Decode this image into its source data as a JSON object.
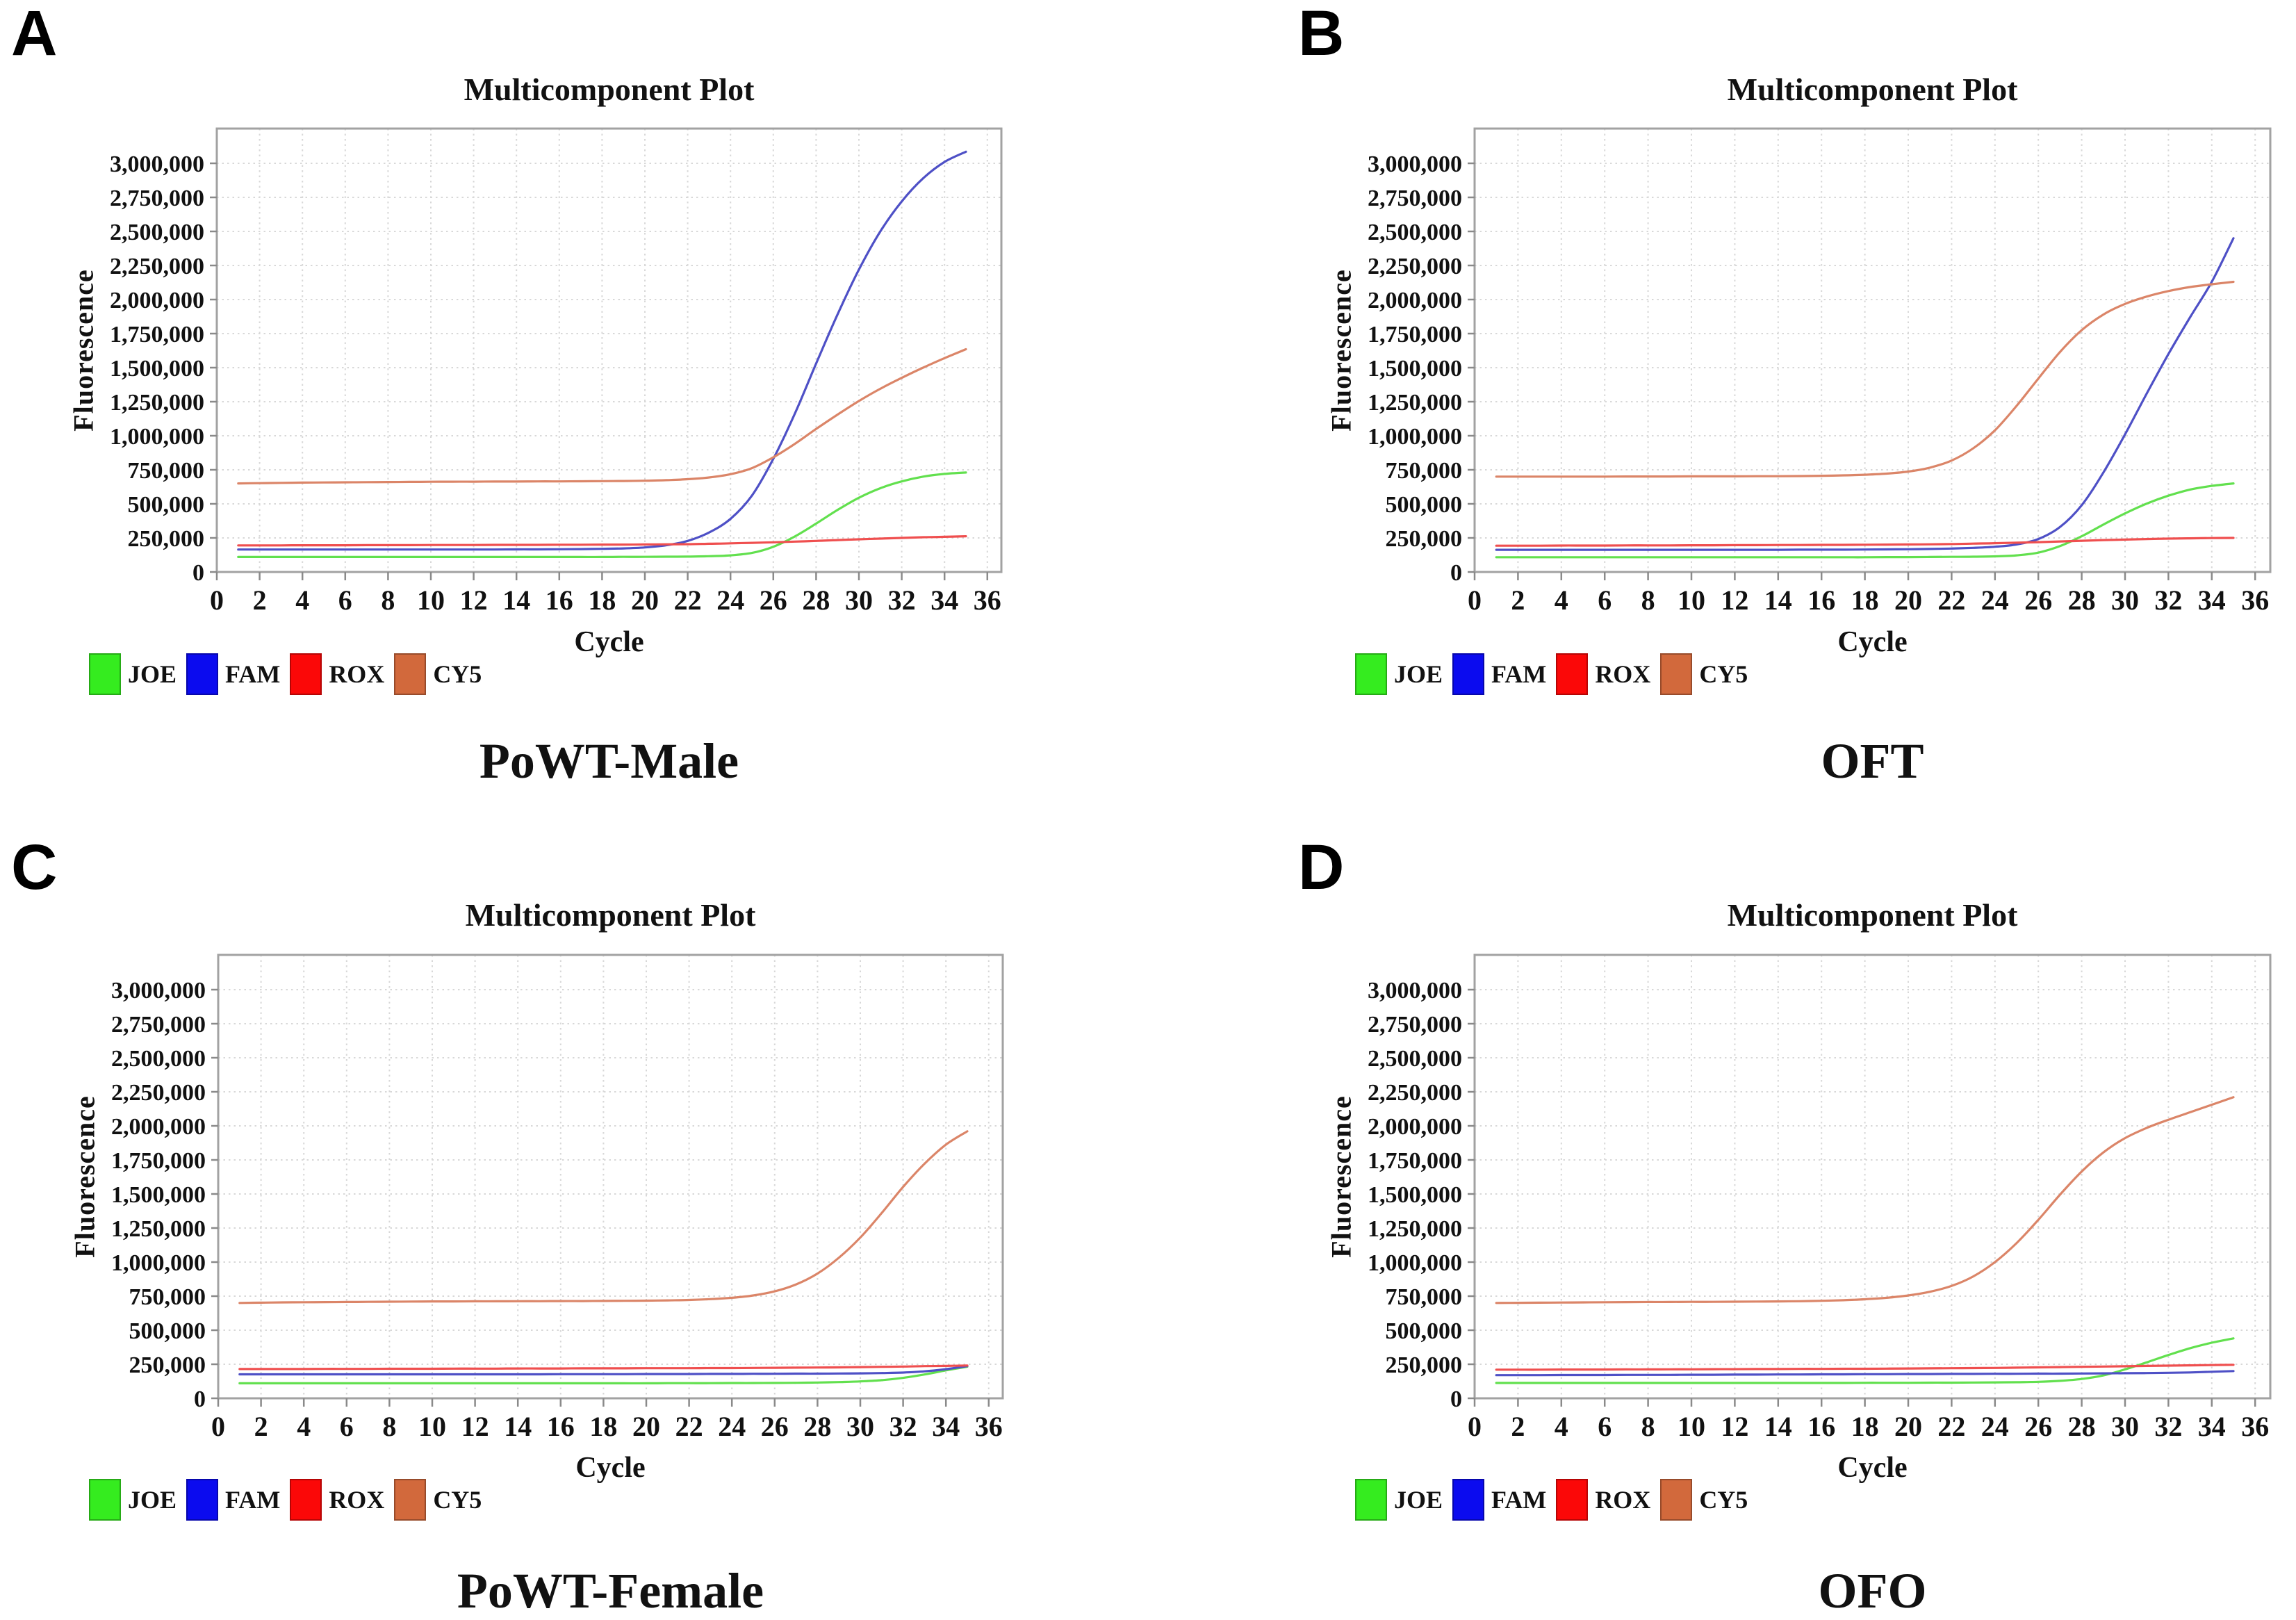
{
  "figure": {
    "background": "#ffffff",
    "frame_color": "#a2a2a2",
    "grid_color": "#d8d8d8",
    "tick_color": "#8a8a8a",
    "text_color": "#111111"
  },
  "axes": {
    "x_ticks": [
      0,
      2,
      4,
      6,
      8,
      10,
      12,
      14,
      16,
      18,
      20,
      22,
      24,
      26,
      28,
      30,
      32,
      34,
      36
    ],
    "y_ticks": [
      0,
      250000,
      500000,
      750000,
      1000000,
      1250000,
      1500000,
      1750000,
      2000000,
      2250000,
      2500000,
      2750000,
      3000000
    ],
    "xlim": [
      0,
      36.7
    ],
    "ylim": [
      0,
      3255000
    ],
    "grid": "dotted",
    "legend_position": "below-left"
  },
  "chart_data": [
    {
      "type": "line",
      "panel_letter": "A",
      "caption": "PoWT-Male",
      "title": "Multicomponent Plot",
      "xlabel": "Cycle",
      "ylabel": "Fluorescence",
      "cycles": {
        "start": 1,
        "end": 35,
        "step": 1
      },
      "series": [
        {
          "name": "JOE",
          "color": "#62e04e",
          "legend_color": "#35ec1f",
          "values": [
            110000,
            110000,
            110000,
            110000,
            110000,
            110000,
            110000,
            110000,
            110000,
            110000,
            110000,
            110000,
            110000,
            110000,
            110000,
            110000,
            110000,
            110000,
            111000,
            111000,
            112000,
            113000,
            116000,
            122000,
            140000,
            185000,
            260000,
            355000,
            455000,
            545000,
            615000,
            665000,
            700000,
            720000,
            730000
          ]
        },
        {
          "name": "FAM",
          "color": "#4e50c6",
          "legend_color": "#0b0bef",
          "values": [
            165000,
            165000,
            165000,
            165000,
            165000,
            165000,
            165000,
            165000,
            165000,
            165000,
            165000,
            165000,
            165000,
            166000,
            166000,
            167000,
            168000,
            170000,
            173000,
            180000,
            196000,
            228000,
            290000,
            390000,
            560000,
            830000,
            1160000,
            1530000,
            1890000,
            2220000,
            2500000,
            2720000,
            2890000,
            3010000,
            3085000
          ]
        },
        {
          "name": "ROX",
          "color": "#ef4f4f",
          "legend_color": "#fb0808",
          "values": [
            195000,
            195000,
            195000,
            196000,
            196000,
            196000,
            197000,
            197000,
            197000,
            198000,
            198000,
            198000,
            199000,
            199000,
            199000,
            200000,
            200000,
            201000,
            201000,
            202000,
            203000,
            204000,
            207000,
            210000,
            214000,
            218000,
            223000,
            228000,
            234000,
            240000,
            245000,
            250000,
            255000,
            258000,
            262000
          ]
        },
        {
          "name": "CY5",
          "color": "#db8568",
          "legend_color": "#d2693c",
          "values": [
            650000,
            652000,
            654000,
            656000,
            657000,
            658000,
            659000,
            660000,
            661000,
            662000,
            663000,
            663000,
            664000,
            664000,
            665000,
            665000,
            666000,
            667000,
            668000,
            670000,
            674000,
            681000,
            694000,
            718000,
            762000,
            842000,
            940000,
            1050000,
            1155000,
            1255000,
            1345000,
            1425000,
            1500000,
            1570000,
            1635000
          ]
        }
      ]
    },
    {
      "type": "line",
      "panel_letter": "B",
      "caption": "OFT",
      "title": "Multicomponent Plot",
      "xlabel": "Cycle",
      "ylabel": "Fluorescence",
      "cycles": {
        "start": 1,
        "end": 35,
        "step": 1
      },
      "series": [
        {
          "name": "JOE",
          "color": "#62e04e",
          "legend_color": "#35ec1f",
          "values": [
            108000,
            108000,
            108000,
            108000,
            108000,
            108000,
            108000,
            108000,
            108000,
            108000,
            108000,
            108000,
            108000,
            108000,
            108000,
            108000,
            108000,
            108000,
            109000,
            109000,
            110000,
            111000,
            112000,
            115000,
            122000,
            142000,
            190000,
            262000,
            348000,
            430000,
            502000,
            560000,
            605000,
            632000,
            650000
          ]
        },
        {
          "name": "FAM",
          "color": "#4e50c6",
          "legend_color": "#0b0bef",
          "values": [
            163000,
            163000,
            163000,
            163000,
            163000,
            163000,
            163000,
            163000,
            163000,
            163000,
            163000,
            163000,
            163000,
            163000,
            164000,
            164000,
            164000,
            165000,
            166000,
            167000,
            169000,
            172000,
            177000,
            185000,
            202000,
            242000,
            330000,
            490000,
            730000,
            1010000,
            1310000,
            1600000,
            1870000,
            2130000,
            2450000
          ]
        },
        {
          "name": "ROX",
          "color": "#ef4f4f",
          "legend_color": "#fb0808",
          "values": [
            193000,
            193000,
            193000,
            194000,
            194000,
            194000,
            195000,
            195000,
            195000,
            196000,
            196000,
            197000,
            197000,
            198000,
            198000,
            199000,
            199000,
            200000,
            201000,
            202000,
            203000,
            205000,
            208000,
            211000,
            215000,
            219000,
            224000,
            229000,
            234000,
            238000,
            242000,
            245000,
            247000,
            249000,
            250000
          ]
        },
        {
          "name": "CY5",
          "color": "#db8568",
          "legend_color": "#d2693c",
          "values": [
            700000,
            700000,
            700000,
            700000,
            700000,
            700000,
            701000,
            701000,
            701000,
            702000,
            702000,
            702000,
            703000,
            703000,
            704000,
            706000,
            709000,
            714000,
            722000,
            737000,
            766000,
            818000,
            908000,
            1040000,
            1220000,
            1420000,
            1615000,
            1775000,
            1890000,
            1968000,
            2022000,
            2062000,
            2092000,
            2112000,
            2130000
          ]
        }
      ]
    },
    {
      "type": "line",
      "panel_letter": "C",
      "caption": "PoWT-Female",
      "title": "Multicomponent Plot",
      "xlabel": "Cycle",
      "ylabel": "Fluorescence",
      "cycles": {
        "start": 1,
        "end": 35,
        "step": 1
      },
      "series": [
        {
          "name": "JOE",
          "color": "#62e04e",
          "legend_color": "#35ec1f",
          "values": [
            110000,
            110000,
            110000,
            110000,
            110000,
            110000,
            110000,
            110000,
            110000,
            110000,
            110000,
            110000,
            110000,
            110000,
            110000,
            110000,
            110000,
            110000,
            110000,
            110000,
            111000,
            111000,
            111000,
            112000,
            112000,
            113000,
            114000,
            116000,
            119000,
            124000,
            133000,
            150000,
            175000,
            205000,
            232000
          ]
        },
        {
          "name": "FAM",
          "color": "#4e50c6",
          "legend_color": "#0b0bef",
          "values": [
            176000,
            176000,
            176000,
            176000,
            176000,
            176000,
            176000,
            176000,
            176000,
            176000,
            176000,
            176000,
            176000,
            176000,
            176000,
            177000,
            177000,
            177000,
            177000,
            178000,
            178000,
            178000,
            179000,
            179000,
            180000,
            180000,
            181000,
            181000,
            182000,
            183000,
            185000,
            189000,
            198000,
            214000,
            236000
          ]
        },
        {
          "name": "ROX",
          "color": "#ef4f4f",
          "legend_color": "#fb0808",
          "values": [
            215000,
            215000,
            215000,
            215000,
            216000,
            216000,
            216000,
            217000,
            217000,
            217000,
            218000,
            218000,
            218000,
            219000,
            219000,
            219000,
            220000,
            220000,
            220000,
            221000,
            221000,
            221000,
            222000,
            222000,
            223000,
            224000,
            225000,
            226000,
            227000,
            229000,
            231000,
            233000,
            236000,
            238000,
            241000
          ]
        },
        {
          "name": "CY5",
          "color": "#db8568",
          "legend_color": "#d2693c",
          "values": [
            700000,
            702000,
            704000,
            705000,
            706000,
            707000,
            708000,
            709000,
            710000,
            711000,
            711000,
            712000,
            712000,
            713000,
            713000,
            714000,
            714000,
            715000,
            716000,
            717000,
            719000,
            722000,
            728000,
            738000,
            755000,
            785000,
            836000,
            916000,
            1032000,
            1180000,
            1360000,
            1552000,
            1722000,
            1862000,
            1960000
          ]
        }
      ]
    },
    {
      "type": "line",
      "panel_letter": "D",
      "caption": "OFO",
      "title": "Multicomponent Plot",
      "xlabel": "Cycle",
      "ylabel": "Fluorescence",
      "cycles": {
        "start": 1,
        "end": 35,
        "step": 1
      },
      "series": [
        {
          "name": "JOE",
          "color": "#62e04e",
          "legend_color": "#35ec1f",
          "values": [
            113000,
            113000,
            113000,
            113000,
            113000,
            113000,
            113000,
            113000,
            113000,
            113000,
            113000,
            113000,
            113000,
            113000,
            113000,
            113000,
            113000,
            114000,
            114000,
            114000,
            115000,
            115000,
            116000,
            117000,
            118000,
            121000,
            128000,
            142000,
            168000,
            212000,
            264000,
            318000,
            368000,
            408000,
            440000
          ]
        },
        {
          "name": "FAM",
          "color": "#4e50c6",
          "legend_color": "#0b0bef",
          "values": [
            170000,
            170000,
            170000,
            171000,
            171000,
            171000,
            172000,
            172000,
            172000,
            173000,
            173000,
            174000,
            174000,
            175000,
            175000,
            176000,
            176000,
            177000,
            177000,
            178000,
            178000,
            179000,
            179000,
            180000,
            180000,
            181000,
            181000,
            182000,
            183000,
            184000,
            185000,
            187000,
            190000,
            195000,
            200000
          ]
        },
        {
          "name": "ROX",
          "color": "#ef4f4f",
          "legend_color": "#fb0808",
          "values": [
            210000,
            210000,
            210000,
            211000,
            211000,
            211000,
            212000,
            212000,
            213000,
            213000,
            214000,
            214000,
            215000,
            215000,
            216000,
            216000,
            217000,
            217000,
            218000,
            219000,
            220000,
            221000,
            222000,
            223000,
            225000,
            227000,
            229000,
            231000,
            233000,
            235000,
            238000,
            240000,
            242000,
            244000,
            246000
          ]
        },
        {
          "name": "CY5",
          "color": "#db8568",
          "legend_color": "#d2693c",
          "values": [
            700000,
            701000,
            702000,
            703000,
            704000,
            705000,
            706000,
            707000,
            707000,
            708000,
            708000,
            709000,
            710000,
            711000,
            713000,
            716000,
            720000,
            727000,
            738000,
            755000,
            782000,
            825000,
            895000,
            1000000,
            1140000,
            1310000,
            1495000,
            1665000,
            1805000,
            1910000,
            1985000,
            2045000,
            2100000,
            2155000,
            2210000
          ]
        }
      ]
    }
  ]
}
